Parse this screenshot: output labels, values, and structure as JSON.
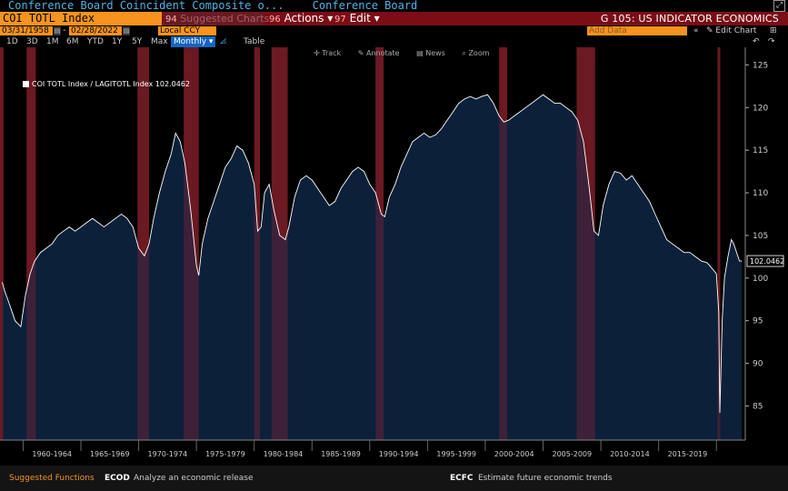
{
  "title": {
    "main": "Conference Board Coincident Composite o...",
    "source": "Conference Board"
  },
  "cmdbar": {
    "ticker": "COI TOTL Index",
    "suggested": {
      "num": "94",
      "label": "Suggested Charts"
    },
    "actions": {
      "num": "96",
      "label": "Actions"
    },
    "edit": {
      "num": "97",
      "label": "Edit"
    },
    "doc_title": "G 105: US INDICATOR ECONOMICS"
  },
  "dates": {
    "start": "03/31/1958",
    "end": "02/28/2022",
    "currency": "Local CCY",
    "add_data_placeholder": "Add Data",
    "edit_chart": "Edit Chart"
  },
  "range_tabs": [
    "1D",
    "3D",
    "1M",
    "6M",
    "YTD",
    "1Y",
    "5Y",
    "Max"
  ],
  "frequency": "Monthly",
  "table_label": "Table",
  "chart_tools": [
    "Track",
    "Annotate",
    "News",
    "Zoom"
  ],
  "colors": {
    "accent_orange": "#f7931e",
    "bar_red": "#7a0d16",
    "area_fill": "#0d2440",
    "line": "#ffffff",
    "recession": "#6b1a20"
  },
  "chart_data": {
    "type": "area",
    "legend": "COI TOTL Index / LAGITOTL Index 102.0462",
    "last_value": "102.0462",
    "ylim": [
      81,
      126
    ],
    "yticks": [
      85,
      90,
      95,
      100,
      105,
      110,
      115,
      120,
      125
    ],
    "xlabels": [
      "1960-1964",
      "1965-1969",
      "1970-1974",
      "1975-1979",
      "1980-1984",
      "1985-1989",
      "1990-1994",
      "1995-1999",
      "2000-2004",
      "2005-2009",
      "2010-2014",
      "2015-2019"
    ],
    "x": [
      1958.2,
      1958.4,
      1958.8,
      1959.3,
      1959.8,
      1960.2,
      1960.6,
      1961.0,
      1961.5,
      1962.0,
      1962.5,
      1963.0,
      1963.5,
      1964.0,
      1964.5,
      1965.0,
      1965.5,
      1966.0,
      1966.5,
      1967.0,
      1967.5,
      1968.0,
      1968.5,
      1969.0,
      1969.5,
      1970.0,
      1970.5,
      1970.9,
      1971.3,
      1971.8,
      1972.3,
      1972.8,
      1973.2,
      1973.6,
      1974.0,
      1974.5,
      1975.0,
      1975.2,
      1975.5,
      1976.0,
      1976.5,
      1977.0,
      1977.5,
      1978.0,
      1978.5,
      1979.0,
      1979.5,
      1980.0,
      1980.3,
      1980.6,
      1980.9,
      1981.3,
      1981.7,
      1982.2,
      1982.7,
      1983.0,
      1983.5,
      1984.0,
      1984.5,
      1985.0,
      1985.5,
      1986.0,
      1986.5,
      1987.0,
      1987.5,
      1988.0,
      1988.5,
      1989.0,
      1989.5,
      1990.0,
      1990.5,
      1991.0,
      1991.3,
      1991.7,
      1992.2,
      1992.7,
      1993.2,
      1993.7,
      1994.2,
      1994.7,
      1995.2,
      1995.7,
      1996.2,
      1996.7,
      1997.2,
      1997.7,
      1998.2,
      1998.7,
      1999.2,
      1999.7,
      2000.2,
      2000.7,
      2001.2,
      2001.6,
      2002.0,
      2002.5,
      2003.0,
      2003.5,
      2004.0,
      2004.5,
      2005.0,
      2005.5,
      2006.0,
      2006.5,
      2007.0,
      2007.5,
      2008.0,
      2008.5,
      2009.0,
      2009.4,
      2009.8,
      2010.2,
      2010.7,
      2011.2,
      2011.7,
      2012.2,
      2012.7,
      2013.2,
      2013.7,
      2014.2,
      2014.7,
      2015.2,
      2015.7,
      2016.2,
      2016.7,
      2017.2,
      2017.7,
      2018.2,
      2018.7,
      2019.2,
      2019.7,
      2020.0,
      2020.2,
      2020.3,
      2020.5,
      2020.7,
      2021.0,
      2021.3,
      2021.5,
      2021.8,
      2022.0,
      2022.2
    ],
    "y": [
      99.5,
      98.5,
      97.0,
      95.0,
      94.3,
      98.0,
      100.5,
      102.0,
      103.0,
      103.5,
      104.0,
      105.0,
      105.5,
      106.0,
      105.5,
      106.0,
      106.5,
      107.0,
      106.5,
      106.0,
      106.5,
      107.0,
      107.5,
      107.0,
      106.0,
      103.5,
      102.6,
      104.0,
      107.0,
      110.0,
      112.5,
      114.5,
      117.0,
      116.0,
      113.5,
      108.0,
      101.5,
      100.3,
      104.0,
      107.0,
      109.0,
      111.0,
      113.0,
      114.0,
      115.5,
      115.0,
      113.5,
      111.0,
      105.5,
      106.0,
      110.0,
      111.0,
      108.0,
      105.0,
      104.5,
      106.0,
      109.5,
      111.5,
      112.0,
      111.5,
      110.5,
      109.5,
      108.5,
      109.0,
      110.5,
      111.5,
      112.5,
      113.0,
      112.5,
      111.0,
      110.0,
      107.5,
      107.2,
      109.5,
      111.0,
      113.0,
      114.5,
      116.0,
      116.5,
      117.0,
      116.5,
      116.8,
      117.5,
      118.5,
      119.5,
      120.5,
      121.0,
      121.3,
      121.0,
      121.3,
      121.5,
      120.5,
      119.0,
      118.3,
      118.5,
      119.0,
      119.5,
      120.0,
      120.5,
      121.0,
      121.5,
      121.0,
      120.5,
      120.5,
      120.0,
      119.5,
      118.5,
      116.0,
      110.5,
      105.5,
      105.0,
      108.5,
      111.0,
      112.5,
      112.3,
      111.5,
      112.0,
      111.0,
      110.0,
      109.0,
      107.5,
      106.0,
      104.5,
      104.0,
      103.5,
      103.0,
      103.0,
      102.5,
      102.0,
      101.8,
      101.0,
      100.5,
      96.0,
      84.2,
      95.0,
      100.0,
      102.5,
      104.5,
      104.0,
      102.8,
      102.0,
      102.0
    ],
    "recessions": [
      [
        1958.0,
        1958.3
      ],
      [
        1960.3,
        1961.1
      ],
      [
        1969.9,
        1970.9
      ],
      [
        1973.9,
        1975.2
      ],
      [
        1980.0,
        1980.5
      ],
      [
        1981.5,
        1982.9
      ],
      [
        1990.5,
        1991.2
      ],
      [
        2001.2,
        2001.9
      ],
      [
        2007.9,
        2009.5
      ],
      [
        2020.1,
        2020.3
      ]
    ]
  }
}
